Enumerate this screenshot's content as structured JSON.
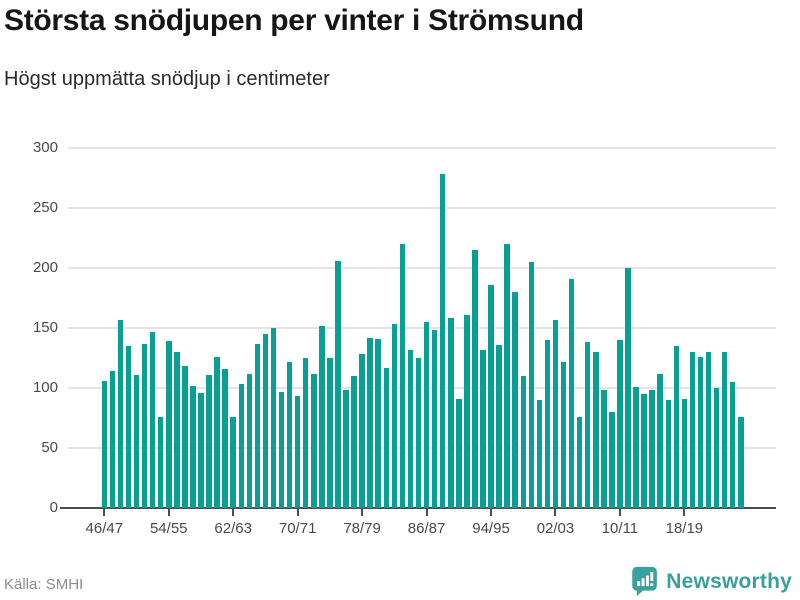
{
  "title": "Största snödjupen per vinter i Strömsund",
  "subtitle": "Högst uppmätta snödjup i centimeter",
  "source": "Källa: SMHI",
  "brand": {
    "name": "Newsworthy"
  },
  "colors": {
    "bar": "#0a9f94",
    "grid": "#e4e4e4",
    "axis": "#4d4d4d",
    "brand_teal": "#3aa09b"
  },
  "chart_data": {
    "type": "bar",
    "title": "Största snödjupen per vinter i Strömsund",
    "subtitle": "Högst uppmätta snödjup i centimeter",
    "xlabel": "",
    "ylabel": "centimeter",
    "ylim": [
      0,
      300
    ],
    "yticks": [
      0,
      50,
      100,
      150,
      200,
      250,
      300
    ],
    "grid": true,
    "legend": false,
    "xtick_every": 8,
    "xtick_labels": [
      "46/47",
      "54/55",
      "62/63",
      "70/71",
      "78/79",
      "86/87",
      "94/95",
      "02/03",
      "10/11",
      "18/19"
    ],
    "categories": [
      "46/47",
      "47/48",
      "48/49",
      "49/50",
      "50/51",
      "51/52",
      "52/53",
      "53/54",
      "54/55",
      "55/56",
      "56/57",
      "57/58",
      "58/59",
      "59/60",
      "60/61",
      "61/62",
      "62/63",
      "63/64",
      "64/65",
      "65/66",
      "66/67",
      "67/68",
      "68/69",
      "69/70",
      "70/71",
      "71/72",
      "72/73",
      "73/74",
      "74/75",
      "75/76",
      "76/77",
      "77/78",
      "78/79",
      "79/80",
      "80/81",
      "81/82",
      "82/83",
      "83/84",
      "84/85",
      "85/86",
      "86/87",
      "87/88",
      "88/89",
      "89/90",
      "90/91",
      "91/92",
      "92/93",
      "93/94",
      "94/95",
      "95/96",
      "96/97",
      "97/98",
      "98/99",
      "99/00",
      "00/01",
      "01/02",
      "02/03",
      "03/04",
      "04/05",
      "05/06",
      "06/07",
      "07/08",
      "08/09",
      "09/10",
      "10/11",
      "11/12",
      "12/13",
      "13/14",
      "14/15",
      "15/16",
      "16/17",
      "17/18",
      "18/19",
      "19/20",
      "20/21",
      "21/22",
      "22/23",
      "23/24",
      "24/25",
      "25/26"
    ],
    "values": [
      106,
      114,
      157,
      135,
      111,
      137,
      147,
      76,
      139,
      130,
      118,
      102,
      96,
      111,
      126,
      116,
      76,
      103,
      112,
      137,
      145,
      150,
      97,
      122,
      93,
      125,
      112,
      152,
      125,
      206,
      98,
      110,
      128,
      142,
      141,
      117,
      153,
      220,
      132,
      125,
      155,
      148,
      278,
      158,
      91,
      161,
      215,
      132,
      186,
      136,
      220,
      180,
      110,
      205,
      90,
      140,
      157,
      122,
      191,
      76,
      138,
      130,
      98,
      80,
      140,
      200,
      101,
      95,
      98,
      112,
      90,
      135,
      91,
      130,
      126,
      130,
      100,
      130,
      105,
      76
    ]
  }
}
